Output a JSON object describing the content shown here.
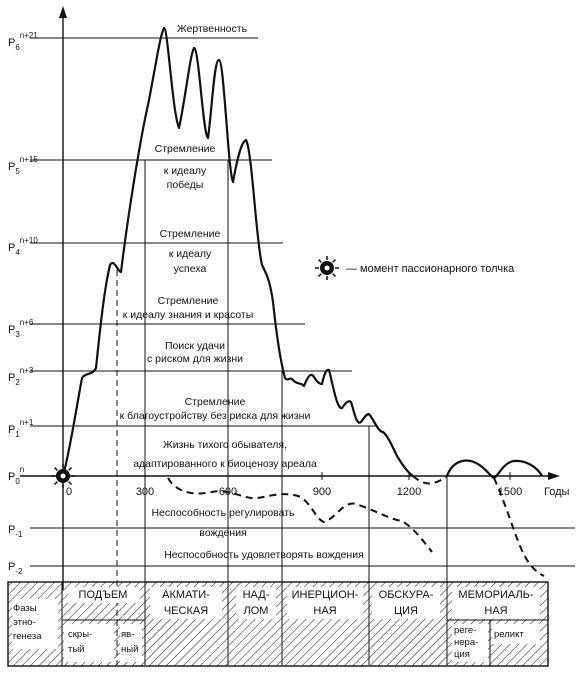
{
  "levels": [
    {
      "base": "P",
      "sub": "6",
      "sup": "n+21"
    },
    {
      "base": "P",
      "sub": "5",
      "sup": "n+15"
    },
    {
      "base": "P",
      "sub": "4",
      "sup": "n+10"
    },
    {
      "base": "P",
      "sub": "3",
      "sup": "n+6"
    },
    {
      "base": "P",
      "sub": "2",
      "sup": "n+3"
    },
    {
      "base": "P",
      "sub": "1",
      "sup": "n+1"
    },
    {
      "base": "P",
      "sub": "0",
      "sup": "n"
    },
    {
      "base": "P",
      "sub": "-1",
      "sup": ""
    },
    {
      "base": "P",
      "sub": "-2",
      "sup": ""
    }
  ],
  "zones": {
    "z6": "Жертвенность",
    "z5a": "Стремление",
    "z5b": "к идеалу",
    "z5c": "победы",
    "z4a": "Стремление",
    "z4b": "к идеалу",
    "z4c": "успеха",
    "z3a": "Стремление",
    "z3b": "к идеалу знания и красоты",
    "z2a": "Поиск удачи",
    "z2b": "с риском для жизни",
    "z1a": "Стремление",
    "z1b": "к благоустройству без риска для жизни",
    "z0a": "Жизнь тихого обывателя,",
    "z0b": "адаптированного к биоценозу ареала",
    "zm1a": "Неспособность регулировать",
    "zm1b": "вождения",
    "zm2": "Неспособность удовлетворять вождения"
  },
  "axis": {
    "ticks": [
      "0",
      "300",
      "600",
      "900",
      "1200",
      "1500"
    ],
    "unit": "Годы"
  },
  "legend": "— момент пассионарного толчка",
  "phases": {
    "label_a": "Фазы",
    "label_b": "этно-",
    "label_c": "генеза",
    "p1": "ПОДЪЕМ",
    "p1a": "скры-",
    "p1b": "тый",
    "p1c": "яв-",
    "p1d": "ный",
    "p2a": "АКМАТИ-",
    "p2b": "ЧЕСКАЯ",
    "p3a": "НАД-",
    "p3b": "ЛОМ",
    "p4a": "ИНЕРЦИОН-",
    "p4b": "НАЯ",
    "p5a": "ОБСКУРА-",
    "p5b": "ЦИЯ",
    "p6a": "МЕМОРИАЛЬ-",
    "p6b": "НАЯ",
    "p6c": "реге-",
    "p6d": "нера-",
    "p6e": "ция",
    "p6f": "реликт"
  }
}
